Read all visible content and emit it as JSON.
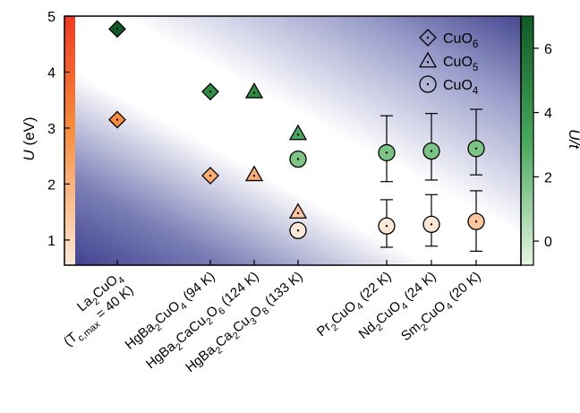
{
  "chart_data": {
    "type": "scatter",
    "left_axis": {
      "label": "U",
      "label_unit": "(eV)",
      "ylim": [
        0.55,
        5.0
      ],
      "ticks": [
        "1",
        "2",
        "3",
        "4",
        "5"
      ]
    },
    "right_axis": {
      "label": "U/t",
      "ylim": [
        -0.75,
        7.0
      ],
      "ticks": [
        "0",
        "2",
        "4",
        "6"
      ]
    },
    "categories": [
      {
        "segments": [
          {
            "t": "La"
          },
          {
            "t": "2",
            "s": "sub"
          },
          {
            "t": "CuO"
          },
          {
            "t": "4",
            "s": "sub"
          }
        ],
        "line2": [
          {
            "t": "(T"
          },
          {
            "t": "c,max",
            "s": "sub"
          },
          {
            "t": " = 40 K)"
          }
        ]
      },
      {
        "segments": [
          {
            "t": "HgBa"
          },
          {
            "t": "2",
            "s": "sub"
          },
          {
            "t": "CuO"
          },
          {
            "t": "4",
            "s": "sub"
          },
          {
            "t": " (94 K)"
          }
        ]
      },
      {
        "segments": [
          {
            "t": "HgBa"
          },
          {
            "t": "2",
            "s": "sub"
          },
          {
            "t": "CaCu"
          },
          {
            "t": "2",
            "s": "sub"
          },
          {
            "t": "O"
          },
          {
            "t": "6",
            "s": "sub"
          },
          {
            "t": " (124 K)"
          }
        ]
      },
      {
        "segments": [
          {
            "t": "HgBa"
          },
          {
            "t": "2",
            "s": "sub"
          },
          {
            "t": "Ca"
          },
          {
            "t": "2",
            "s": "sub"
          },
          {
            "t": "Cu"
          },
          {
            "t": "3",
            "s": "sub"
          },
          {
            "t": "O"
          },
          {
            "t": "8",
            "s": "sub"
          },
          {
            "t": " (133 K)"
          }
        ]
      },
      {
        "segments": [
          {
            "t": "Pr"
          },
          {
            "t": "2",
            "s": "sub"
          },
          {
            "t": "CuO"
          },
          {
            "t": "4",
            "s": "sub"
          },
          {
            "t": " (22 K)"
          }
        ]
      },
      {
        "segments": [
          {
            "t": "Nd"
          },
          {
            "t": "2",
            "s": "sub"
          },
          {
            "t": "CuO"
          },
          {
            "t": "4",
            "s": "sub"
          },
          {
            "t": " (24 K)"
          }
        ]
      },
      {
        "segments": [
          {
            "t": "Sm"
          },
          {
            "t": "2",
            "s": "sub"
          },
          {
            "t": "CuO"
          },
          {
            "t": "4",
            "s": "sub"
          },
          {
            "t": " (20 K)"
          }
        ]
      }
    ],
    "legend": [
      {
        "marker": "diamond",
        "segments": [
          {
            "t": "CuO"
          },
          {
            "t": "6",
            "s": "sub"
          }
        ]
      },
      {
        "marker": "triangle",
        "segments": [
          {
            "t": "CuO"
          },
          {
            "t": "5",
            "s": "sub"
          }
        ]
      },
      {
        "marker": "circle",
        "segments": [
          {
            "t": "CuO"
          },
          {
            "t": "4",
            "s": "sub"
          }
        ]
      }
    ],
    "legend_position": "top-right",
    "series_U": [
      {
        "cat": 0,
        "marker": "diamond",
        "y": 3.15
      },
      {
        "cat": 1,
        "marker": "diamond",
        "y": 2.15
      },
      {
        "cat": 2,
        "marker": "triangle",
        "y": 2.17
      },
      {
        "cat": 3,
        "marker": "triangle",
        "y": 1.5
      },
      {
        "cat": 3,
        "marker": "circle",
        "y": 1.17
      },
      {
        "cat": 4,
        "marker": "circle",
        "y": 1.25,
        "err": [
          0.87,
          1.72
        ]
      },
      {
        "cat": 5,
        "marker": "circle",
        "y": 1.28,
        "err": [
          0.89,
          1.81
        ]
      },
      {
        "cat": 6,
        "marker": "circle",
        "y": 1.33,
        "err": [
          0.8,
          1.88
        ]
      }
    ],
    "series_U_over_t": [
      {
        "cat": 0,
        "marker": "diamond",
        "y": 6.6
      },
      {
        "cat": 1,
        "marker": "diamond",
        "y": 4.65
      },
      {
        "cat": 2,
        "marker": "triangle",
        "y": 4.65
      },
      {
        "cat": 3,
        "marker": "triangle",
        "y": 3.35
      },
      {
        "cat": 3,
        "marker": "circle",
        "y": 2.55
      },
      {
        "cat": 4,
        "marker": "circle",
        "y": 2.75,
        "err": [
          1.85,
          3.9
        ]
      },
      {
        "cat": 5,
        "marker": "circle",
        "y": 2.8,
        "err": [
          1.9,
          3.97
        ]
      },
      {
        "cat": 6,
        "marker": "circle",
        "y": 2.88,
        "err": [
          2.06,
          4.1
        ]
      }
    ],
    "colors": {
      "U_scale": [
        "#ef3b22",
        "#f88c3c",
        "#fde8d6"
      ],
      "U_over_t_scale": [
        "#0f5a24",
        "#46a85a",
        "#e6f5e3"
      ],
      "background_gradient": [
        "#3c3f8c",
        "#ffffff"
      ]
    }
  }
}
